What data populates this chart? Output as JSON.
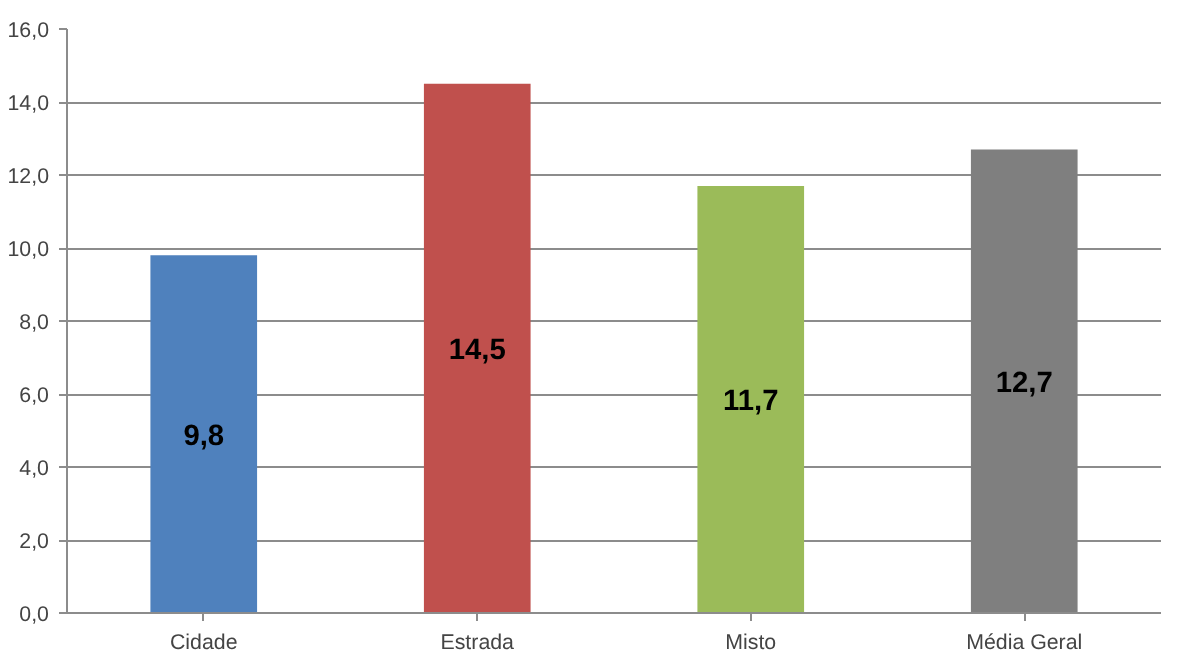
{
  "chart_data": {
    "type": "bar",
    "categories": [
      "Cidade",
      "Estrada",
      "Misto",
      "Média Geral"
    ],
    "values": [
      9.8,
      14.5,
      11.7,
      12.7
    ],
    "colors": [
      "#4f81bd",
      "#c0504d",
      "#9bbb59",
      "#7f7f7f"
    ],
    "value_labels": [
      "9,8",
      "14,5",
      "11,7",
      "12,7"
    ],
    "ylim": [
      0,
      16
    ],
    "yticks": [
      {
        "value": 0,
        "label": "0,0"
      },
      {
        "value": 2,
        "label": "2,0"
      },
      {
        "value": 4,
        "label": "4,0"
      },
      {
        "value": 6,
        "label": "6,0"
      },
      {
        "value": 8,
        "label": "8,0"
      },
      {
        "value": 10,
        "label": "10,0"
      },
      {
        "value": 12,
        "label": "12,0"
      },
      {
        "value": 14,
        "label": "14,0"
      },
      {
        "value": 16,
        "label": "16,0"
      }
    ],
    "grid": "y"
  }
}
